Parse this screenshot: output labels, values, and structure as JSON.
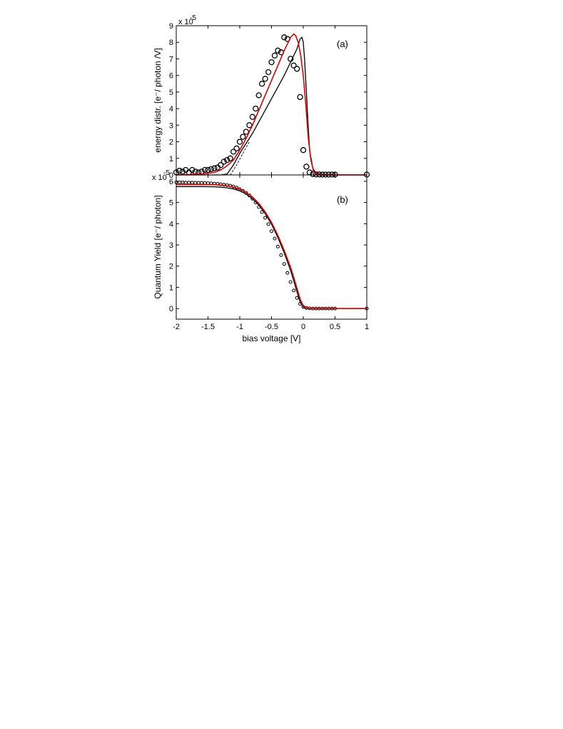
{
  "chart_data": [
    {
      "type": "line",
      "panel_label": "(a)",
      "ylabel": "energy distr. [e⁻/ photon /V]",
      "xlabel": "",
      "y_multiplier": "x 10",
      "y_multiplier_exp": "-5",
      "xlim": [
        -2,
        1
      ],
      "ylim": [
        0,
        9
      ],
      "yticks": [
        0,
        1,
        2,
        3,
        4,
        5,
        6,
        7,
        8,
        9
      ],
      "ytick_labels": [
        "0",
        "1",
        "2",
        "3",
        "4",
        "5",
        "6",
        "7",
        "8",
        "9"
      ],
      "grid": false,
      "series": [
        {
          "kind": "scatter",
          "marker": "open-circle",
          "color": "#000000",
          "x": [
            -2.0,
            -1.95,
            -1.9,
            -1.85,
            -1.8,
            -1.75,
            -1.7,
            -1.65,
            -1.6,
            -1.55,
            -1.5,
            -1.45,
            -1.4,
            -1.35,
            -1.3,
            -1.25,
            -1.2,
            -1.15,
            -1.1,
            -1.05,
            -1.0,
            -0.95,
            -0.9,
            -0.85,
            -0.8,
            -0.75,
            -0.7,
            -0.65,
            -0.6,
            -0.55,
            -0.5,
            -0.45,
            -0.4,
            -0.35,
            -0.3,
            -0.25,
            -0.2,
            -0.15,
            -0.1,
            -0.05,
            0.0,
            0.05,
            0.1,
            0.15,
            0.2,
            0.25,
            0.3,
            0.35,
            0.4,
            0.45,
            0.5,
            1.0
          ],
          "y": [
            0.15,
            0.25,
            0.2,
            0.3,
            0.15,
            0.3,
            0.2,
            0.15,
            0.2,
            0.3,
            0.3,
            0.35,
            0.4,
            0.45,
            0.6,
            0.8,
            0.9,
            1.0,
            1.4,
            1.6,
            2.0,
            2.3,
            2.6,
            3.0,
            3.5,
            4.0,
            4.8,
            5.5,
            5.8,
            6.2,
            6.8,
            7.2,
            7.5,
            7.4,
            8.3,
            8.2,
            7.0,
            6.6,
            6.4,
            4.7,
            1.5,
            0.5,
            0.15,
            0.05,
            0.03,
            0.03,
            0.02,
            0.02,
            0.02,
            0.02,
            0.02,
            0.02
          ]
        },
        {
          "kind": "line",
          "color": "#000000",
          "x": [
            -2.0,
            -1.5,
            -1.3,
            -1.2,
            -1.1,
            -1.0,
            -0.9,
            -0.8,
            -0.7,
            -0.6,
            -0.5,
            -0.4,
            -0.3,
            -0.2,
            -0.1,
            -0.05,
            -0.02,
            0.0,
            0.02,
            0.05,
            0.08,
            0.1,
            0.15,
            0.2,
            0.3,
            0.5,
            1.0
          ],
          "y": [
            0.0,
            0.0,
            0.0,
            0.05,
            0.6,
            1.3,
            1.9,
            2.5,
            3.2,
            3.9,
            4.6,
            5.3,
            6.0,
            6.8,
            7.6,
            8.2,
            8.3,
            8.0,
            7.0,
            5.0,
            2.8,
            1.5,
            0.4,
            0.1,
            0.02,
            0.0,
            0.0
          ]
        },
        {
          "kind": "line",
          "style": "dashed",
          "color": "#000000",
          "x": [
            -1.15,
            -1.05,
            -0.95,
            -0.85
          ],
          "y": [
            0.0,
            0.6,
            1.3,
            2.0
          ]
        },
        {
          "kind": "line",
          "color": "#e00000",
          "x": [
            -2.0,
            -1.6,
            -1.4,
            -1.3,
            -1.2,
            -1.1,
            -1.0,
            -0.9,
            -0.8,
            -0.7,
            -0.6,
            -0.5,
            -0.4,
            -0.3,
            -0.2,
            -0.15,
            -0.12,
            -0.08,
            -0.04,
            0.0,
            0.04,
            0.08,
            0.12,
            0.16,
            0.2,
            0.3,
            1.0
          ],
          "y": [
            0.0,
            0.05,
            0.15,
            0.3,
            0.55,
            0.9,
            1.5,
            2.2,
            3.0,
            3.9,
            4.8,
            5.7,
            6.6,
            7.5,
            8.3,
            8.5,
            8.4,
            8.0,
            7.2,
            6.0,
            4.2,
            2.2,
            0.9,
            0.25,
            0.05,
            0.0,
            0.0
          ]
        }
      ]
    },
    {
      "type": "line",
      "panel_label": "(b)",
      "ylabel": "Quantum Yield [e⁻/ photon]",
      "xlabel": "bias voltage [V]",
      "y_multiplier": "x 10",
      "y_multiplier_exp": "-5",
      "xlim": [
        -2,
        1
      ],
      "ylim": [
        -0.5,
        6.3
      ],
      "xticks": [
        -2,
        -1.5,
        -1,
        -0.5,
        0,
        0.5,
        1
      ],
      "xtick_labels": [
        "-2",
        "-1.5",
        "-1",
        "-0.5",
        "0",
        "0.5",
        "1"
      ],
      "yticks": [
        0,
        1,
        2,
        3,
        4,
        5,
        6
      ],
      "ytick_labels": [
        "0",
        "1",
        "2",
        "3",
        "4",
        "5",
        "6"
      ],
      "grid": false,
      "series": [
        {
          "kind": "scatter",
          "marker": "open-circle",
          "color": "#000000",
          "x": [
            -2.0,
            -1.95,
            -1.9,
            -1.85,
            -1.8,
            -1.75,
            -1.7,
            -1.65,
            -1.6,
            -1.55,
            -1.5,
            -1.45,
            -1.4,
            -1.35,
            -1.3,
            -1.25,
            -1.2,
            -1.15,
            -1.1,
            -1.05,
            -1.0,
            -0.95,
            -0.9,
            -0.85,
            -0.8,
            -0.75,
            -0.7,
            -0.65,
            -0.6,
            -0.55,
            -0.5,
            -0.45,
            -0.4,
            -0.35,
            -0.3,
            -0.25,
            -0.2,
            -0.15,
            -0.1,
            -0.05,
            0.0,
            0.05,
            0.1,
            0.15,
            0.2,
            0.25,
            0.3,
            0.35,
            0.4,
            0.45,
            0.5,
            1.0
          ],
          "y": [
            5.95,
            5.95,
            5.95,
            5.94,
            5.94,
            5.94,
            5.93,
            5.93,
            5.93,
            5.92,
            5.91,
            5.9,
            5.89,
            5.88,
            5.86,
            5.84,
            5.82,
            5.79,
            5.75,
            5.7,
            5.63,
            5.55,
            5.45,
            5.33,
            5.18,
            5.0,
            4.79,
            4.55,
            4.28,
            3.98,
            3.65,
            3.3,
            2.92,
            2.52,
            2.1,
            1.68,
            1.25,
            0.85,
            0.5,
            0.22,
            0.08,
            0.03,
            0.01,
            0.0,
            0.0,
            0.0,
            0.0,
            0.0,
            0.0,
            0.0,
            0.0,
            0.0
          ]
        },
        {
          "kind": "line",
          "color": "#000000",
          "x": [
            -2.0,
            -1.6,
            -1.4,
            -1.3,
            -1.2,
            -1.1,
            -1.0,
            -0.9,
            -0.8,
            -0.7,
            -0.6,
            -0.5,
            -0.4,
            -0.3,
            -0.2,
            -0.15,
            -0.1,
            -0.05,
            0.0,
            0.05,
            0.1,
            0.2,
            0.5,
            1.0
          ],
          "y": [
            5.75,
            5.75,
            5.74,
            5.72,
            5.69,
            5.64,
            5.55,
            5.4,
            5.18,
            4.88,
            4.48,
            3.98,
            3.35,
            2.62,
            1.8,
            1.32,
            0.8,
            0.3,
            0.08,
            0.02,
            0.0,
            0.0,
            0.0,
            0.0
          ]
        },
        {
          "kind": "line",
          "color": "#e00000",
          "x": [
            -2.0,
            -1.6,
            -1.4,
            -1.3,
            -1.2,
            -1.1,
            -1.0,
            -0.9,
            -0.8,
            -0.7,
            -0.6,
            -0.5,
            -0.4,
            -0.3,
            -0.2,
            -0.15,
            -0.1,
            -0.05,
            0.0,
            0.05,
            0.1,
            0.2,
            0.5,
            1.0
          ],
          "y": [
            5.85,
            5.85,
            5.84,
            5.82,
            5.78,
            5.72,
            5.63,
            5.48,
            5.26,
            4.96,
            4.56,
            4.06,
            3.45,
            2.74,
            1.95,
            1.48,
            0.96,
            0.45,
            0.12,
            0.03,
            0.0,
            0.0,
            0.0,
            0.0
          ]
        }
      ]
    }
  ]
}
